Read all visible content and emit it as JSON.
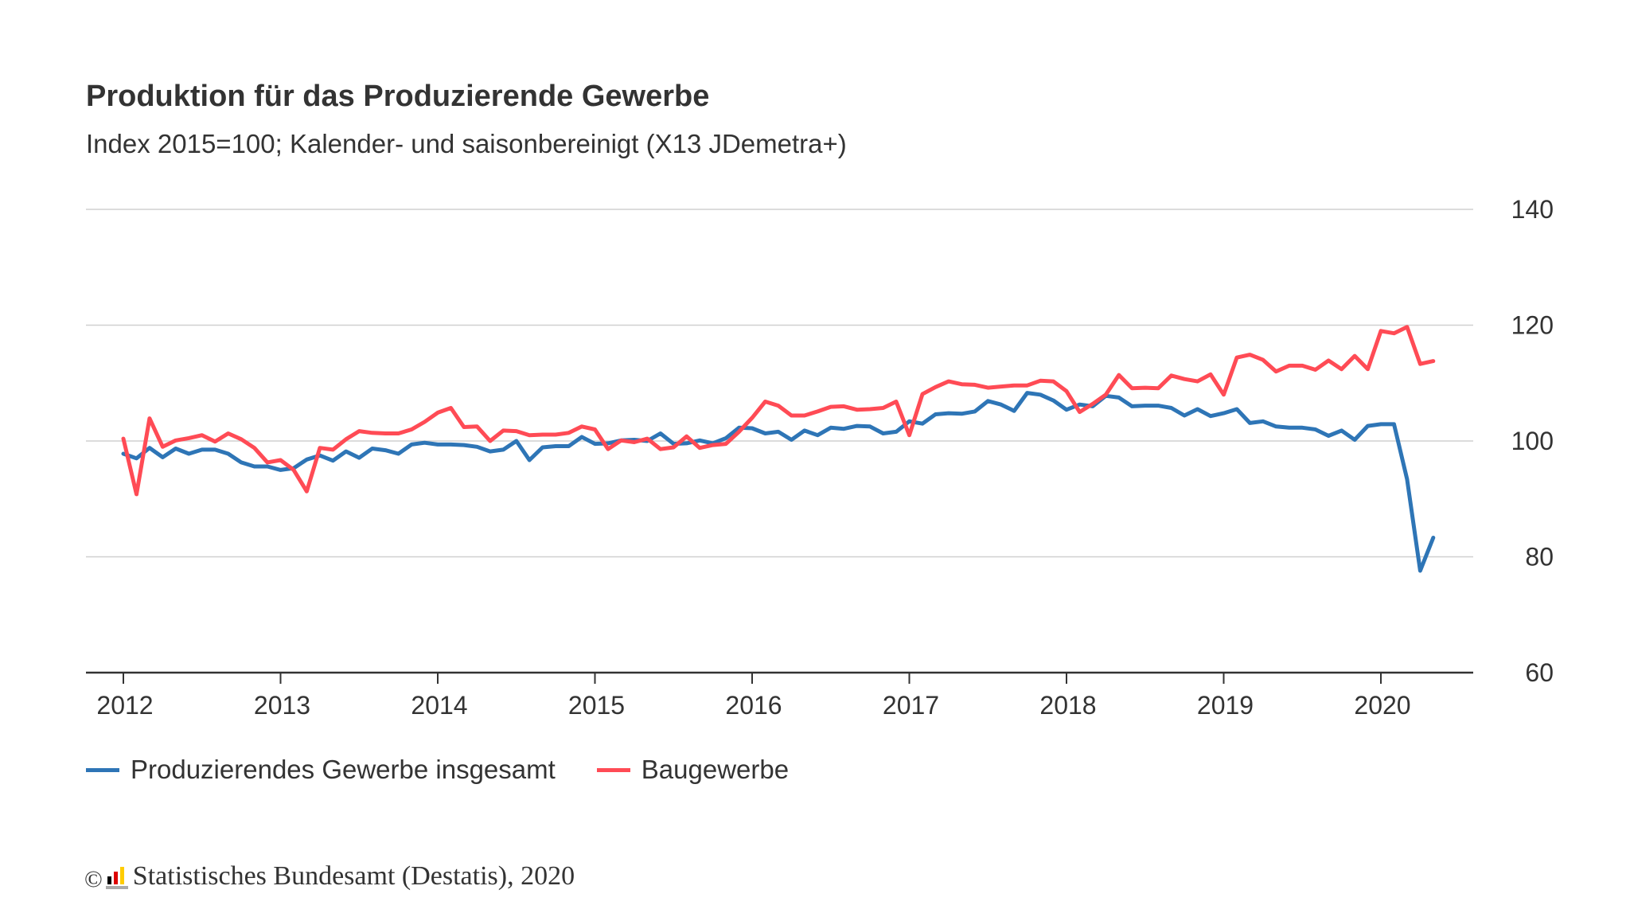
{
  "chart_data": {
    "type": "line",
    "title": "Produktion für das Produzierende Gewerbe",
    "subtitle": "Index 2015=100; Kalender- und saisonbereinigt (X13 JDemetra+)",
    "xlabel": "",
    "ylabel": "",
    "ylim": [
      60,
      140
    ],
    "yticks": [
      "140",
      "120",
      "100",
      "80",
      "60"
    ],
    "xticks": [
      "2012",
      "2013",
      "2014",
      "2015",
      "2016",
      "2017",
      "2018",
      "2019",
      "2020"
    ],
    "grid": "horizontal",
    "legend_position": "bottom-left",
    "y_axis_position": "right",
    "x": [
      "2012-01",
      "2012-02",
      "2012-03",
      "2012-04",
      "2012-05",
      "2012-06",
      "2012-07",
      "2012-08",
      "2012-09",
      "2012-10",
      "2012-11",
      "2012-12",
      "2013-01",
      "2013-02",
      "2013-03",
      "2013-04",
      "2013-05",
      "2013-06",
      "2013-07",
      "2013-08",
      "2013-09",
      "2013-10",
      "2013-11",
      "2013-12",
      "2014-01",
      "2014-02",
      "2014-03",
      "2014-04",
      "2014-05",
      "2014-06",
      "2014-07",
      "2014-08",
      "2014-09",
      "2014-10",
      "2014-11",
      "2014-12",
      "2015-01",
      "2015-02",
      "2015-03",
      "2015-04",
      "2015-05",
      "2015-06",
      "2015-07",
      "2015-08",
      "2015-09",
      "2015-10",
      "2015-11",
      "2015-12",
      "2016-01",
      "2016-02",
      "2016-03",
      "2016-04",
      "2016-05",
      "2016-06",
      "2016-07",
      "2016-08",
      "2016-09",
      "2016-10",
      "2016-11",
      "2016-12",
      "2017-01",
      "2017-02",
      "2017-03",
      "2017-04",
      "2017-05",
      "2017-06",
      "2017-07",
      "2017-08",
      "2017-09",
      "2017-10",
      "2017-11",
      "2017-12",
      "2018-01",
      "2018-02",
      "2018-03",
      "2018-04",
      "2018-05",
      "2018-06",
      "2018-07",
      "2018-08",
      "2018-09",
      "2018-10",
      "2018-11",
      "2018-12",
      "2019-01",
      "2019-02",
      "2019-03",
      "2019-04",
      "2019-05",
      "2019-06",
      "2019-07",
      "2019-08",
      "2019-09",
      "2019-10",
      "2019-11",
      "2019-12",
      "2020-01",
      "2020-02",
      "2020-03",
      "2020-04",
      "2020-05"
    ],
    "series": [
      {
        "name": "Produzierendes Gewerbe insgesamt",
        "color": "#2e75b6",
        "values": [
          97.8,
          97.0,
          98.8,
          97.2,
          98.7,
          97.8,
          98.5,
          98.5,
          97.8,
          96.3,
          95.6,
          95.6,
          95.0,
          95.3,
          96.8,
          97.5,
          96.6,
          98.2,
          97.1,
          98.7,
          98.4,
          97.8,
          99.4,
          99.7,
          99.4,
          99.4,
          99.3,
          99.0,
          98.2,
          98.5,
          100.0,
          96.7,
          98.9,
          99.1,
          99.1,
          100.7,
          99.5,
          99.6,
          100.1,
          100.2,
          100.0,
          101.3,
          99.5,
          99.6,
          100.1,
          99.6,
          100.5,
          102.3,
          102.2,
          101.3,
          101.6,
          100.2,
          101.8,
          101.0,
          102.3,
          102.1,
          102.6,
          102.5,
          101.3,
          101.6,
          103.4,
          103.0,
          104.6,
          104.8,
          104.7,
          105.1,
          106.9,
          106.3,
          105.2,
          108.3,
          108.0,
          107.0,
          105.4,
          106.3,
          106.0,
          107.8,
          107.5,
          106.0,
          106.1,
          106.1,
          105.7,
          104.4,
          105.5,
          104.3,
          104.8,
          105.5,
          103.1,
          103.4,
          102.5,
          102.3,
          102.3,
          102.0,
          100.9,
          101.8,
          100.2,
          102.6,
          102.9,
          102.9,
          93.4,
          77.6,
          83.3
        ]
      },
      {
        "name": "Baugewerbe",
        "color": "#ff4b55",
        "values": [
          100.4,
          90.8,
          103.9,
          99.0,
          100.1,
          100.5,
          101.0,
          99.9,
          101.3,
          100.3,
          98.8,
          96.3,
          96.7,
          95.0,
          91.3,
          98.8,
          98.5,
          100.3,
          101.7,
          101.4,
          101.3,
          101.3,
          102.0,
          103.3,
          104.9,
          105.7,
          102.4,
          102.5,
          100.0,
          101.8,
          101.7,
          101.0,
          101.1,
          101.1,
          101.4,
          102.5,
          102.0,
          98.6,
          100.1,
          99.8,
          100.4,
          98.6,
          98.9,
          100.8,
          98.8,
          99.3,
          99.5,
          101.6,
          104.0,
          106.8,
          106.1,
          104.4,
          104.4,
          105.1,
          105.9,
          106.0,
          105.4,
          105.5,
          105.7,
          106.8,
          101.0,
          108.1,
          109.3,
          110.3,
          109.8,
          109.7,
          109.2,
          109.4,
          109.6,
          109.6,
          110.4,
          110.3,
          108.6,
          105.0,
          106.4,
          108.0,
          111.4,
          109.1,
          109.2,
          109.1,
          111.3,
          110.7,
          110.3,
          111.5,
          108.0,
          114.4,
          114.9,
          114.0,
          112.0,
          113.0,
          113.0,
          112.3,
          113.9,
          112.4,
          114.7,
          112.4,
          119.0,
          118.6,
          119.7,
          113.3,
          113.8
        ]
      }
    ]
  },
  "footer": {
    "copyright_symbol": "©",
    "source": "Statistisches Bundesamt (Destatis), 2020",
    "logo_colors": [
      "#000000",
      "#dd0000",
      "#ffcc00"
    ]
  }
}
